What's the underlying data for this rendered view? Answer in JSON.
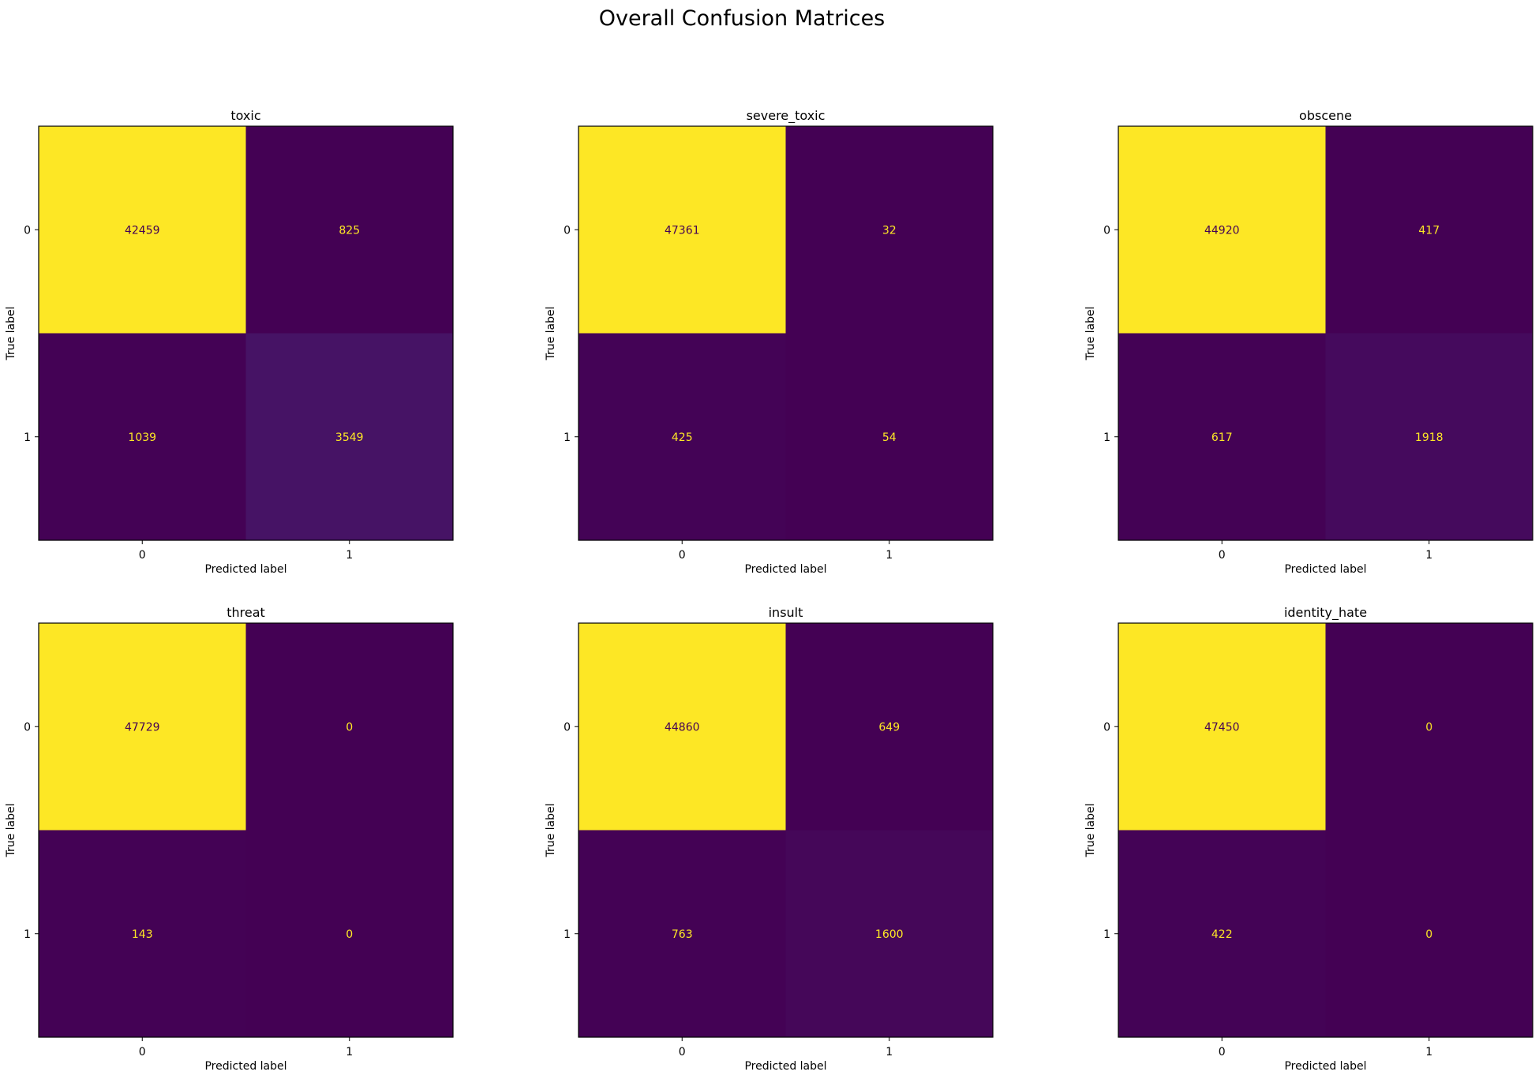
{
  "figure": {
    "title": "Overall Confusion Matrices"
  },
  "chart_data": [
    {
      "type": "heatmap",
      "title": "toxic",
      "xlabel": "Predicted label",
      "ylabel": "True label",
      "x_tick_labels": [
        "0",
        "1"
      ],
      "y_tick_labels": [
        "0",
        "1"
      ],
      "matrix": [
        [
          42459,
          825
        ],
        [
          1039,
          3549
        ]
      ],
      "colormap": "viridis",
      "grid": false
    },
    {
      "type": "heatmap",
      "title": "severe_toxic",
      "xlabel": "Predicted label",
      "ylabel": "True label",
      "x_tick_labels": [
        "0",
        "1"
      ],
      "y_tick_labels": [
        "0",
        "1"
      ],
      "matrix": [
        [
          47361,
          32
        ],
        [
          425,
          54
        ]
      ],
      "colormap": "viridis",
      "grid": false
    },
    {
      "type": "heatmap",
      "title": "obscene",
      "xlabel": "Predicted label",
      "ylabel": "True label",
      "x_tick_labels": [
        "0",
        "1"
      ],
      "y_tick_labels": [
        "0",
        "1"
      ],
      "matrix": [
        [
          44920,
          417
        ],
        [
          617,
          1918
        ]
      ],
      "colormap": "viridis",
      "grid": false
    },
    {
      "type": "heatmap",
      "title": "threat",
      "xlabel": "Predicted label",
      "ylabel": "True label",
      "x_tick_labels": [
        "0",
        "1"
      ],
      "y_tick_labels": [
        "0",
        "1"
      ],
      "matrix": [
        [
          47729,
          0
        ],
        [
          143,
          0
        ]
      ],
      "colormap": "viridis",
      "grid": false
    },
    {
      "type": "heatmap",
      "title": "insult",
      "xlabel": "Predicted label",
      "ylabel": "True label",
      "x_tick_labels": [
        "0",
        "1"
      ],
      "y_tick_labels": [
        "0",
        "1"
      ],
      "matrix": [
        [
          44860,
          649
        ],
        [
          763,
          1600
        ]
      ],
      "colormap": "viridis",
      "grid": false
    },
    {
      "type": "heatmap",
      "title": "identity_hate",
      "xlabel": "Predicted label",
      "ylabel": "True label",
      "x_tick_labels": [
        "0",
        "1"
      ],
      "y_tick_labels": [
        "0",
        "1"
      ],
      "matrix": [
        [
          47450,
          0
        ],
        [
          422,
          0
        ]
      ],
      "colormap": "viridis",
      "grid": false
    }
  ]
}
